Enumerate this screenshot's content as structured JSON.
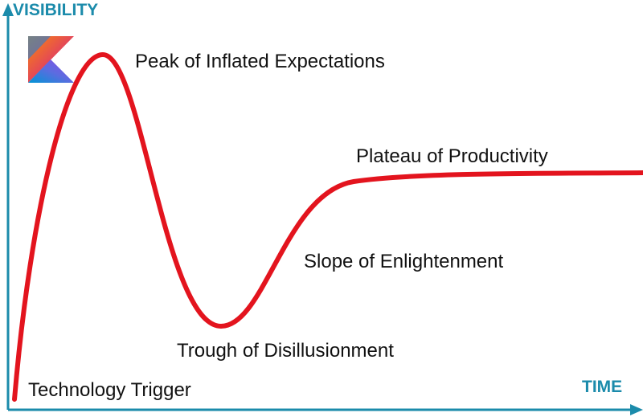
{
  "axes": {
    "y_label": "VISIBILITY",
    "x_label": "TIME"
  },
  "phases": [
    "Technology Trigger",
    "Peak of Inflated Expectations",
    "Trough of Disillusionment",
    "Slope of Enlightenment",
    "Plateau of Productivity"
  ]
}
